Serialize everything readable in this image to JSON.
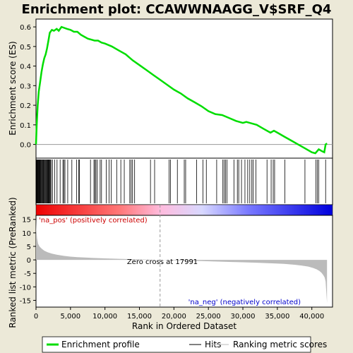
{
  "chart_data": {
    "type": "line",
    "title": "Enrichment plot: CCAWWNAAGG_V$SRF_Q4",
    "top_panel": {
      "ylabel": "Enrichment score (ES)",
      "ylim": [
        -0.07,
        0.64
      ],
      "yticks": [
        "0.0",
        "0.1",
        "0.2",
        "0.3",
        "0.4",
        "0.5",
        "0.6"
      ],
      "ytick_values": [
        0.0,
        0.1,
        0.2,
        0.3,
        0.4,
        0.5,
        0.6
      ],
      "series": [
        {
          "name": "Enrichment profile",
          "color": "#00dd00",
          "x": [
            0,
            100,
            250,
            400,
            600,
            800,
            1000,
            1200,
            1400,
            1600,
            1800,
            2000,
            2300,
            2600,
            3000,
            3300,
            3700,
            4100,
            4500,
            5000,
            5500,
            6000,
            6500,
            7000,
            7500,
            8000,
            8500,
            9000,
            9500,
            10000,
            11000,
            12000,
            13000,
            14000,
            15000,
            16000,
            17000,
            18000,
            19000,
            20000,
            21000,
            22000,
            23000,
            24000,
            25000,
            26000,
            27000,
            28000,
            29000,
            29500,
            30000,
            30500,
            31000,
            31500,
            32000,
            33000,
            34000,
            34500,
            35000,
            36000,
            37000,
            38000,
            39000,
            40000,
            40500,
            41000,
            41500,
            41800,
            42000,
            42200
          ],
          "y": [
            0.0,
            0.1,
            0.2,
            0.27,
            0.32,
            0.37,
            0.41,
            0.44,
            0.46,
            0.49,
            0.53,
            0.57,
            0.585,
            0.58,
            0.59,
            0.58,
            0.6,
            0.595,
            0.59,
            0.585,
            0.575,
            0.575,
            0.56,
            0.55,
            0.54,
            0.535,
            0.53,
            0.53,
            0.52,
            0.515,
            0.5,
            0.48,
            0.46,
            0.43,
            0.405,
            0.38,
            0.355,
            0.33,
            0.305,
            0.28,
            0.26,
            0.235,
            0.215,
            0.195,
            0.17,
            0.155,
            0.15,
            0.135,
            0.12,
            0.115,
            0.11,
            0.115,
            0.11,
            0.105,
            0.1,
            0.08,
            0.06,
            0.07,
            0.06,
            0.04,
            0.02,
            0.0,
            -0.02,
            -0.04,
            -0.045,
            -0.025,
            -0.035,
            -0.04,
            0.0,
            0.005
          ]
        }
      ]
    },
    "hits_panel": {
      "hit_positions": [
        60,
        120,
        180,
        250,
        310,
        380,
        450,
        520,
        600,
        680,
        760,
        850,
        940,
        1030,
        1120,
        1220,
        1320,
        1420,
        1520,
        1600,
        1680,
        1760,
        1840,
        1920,
        2000,
        2080,
        2200,
        2400,
        2700,
        3050,
        3500,
        3900,
        4050,
        4200,
        4600,
        5200,
        5900,
        6200,
        6300,
        7900,
        8400,
        8550,
        8700,
        8900,
        9300,
        9500,
        10200,
        10600,
        10900,
        11700,
        12300,
        12800,
        13600,
        13800,
        14000,
        14300,
        16600,
        17200,
        19300,
        19500,
        20500,
        21500,
        21700,
        23300,
        24200,
        24700,
        26200,
        27100,
        27300,
        27500,
        27700,
        28700,
        29200,
        29400,
        29800,
        30300,
        30700,
        31000,
        31300,
        31500,
        31900,
        33500,
        34100,
        34400,
        34600,
        36100,
        39000,
        40600,
        40800,
        41000,
        42000
      ]
    },
    "gradient_bar": {
      "colors": [
        "#ee0000",
        "#ff7777",
        "#ffbbdd",
        "#d8d8ff",
        "#7777ff",
        "#0000dd"
      ]
    },
    "bottom_panel": {
      "ylabel": "Ranked list metric (PreRanked)",
      "ylim": [
        -17.5,
        16.5
      ],
      "yticks": [
        "15",
        "10",
        "5",
        "0",
        "-5",
        "-10",
        "-15"
      ],
      "ytick_values": [
        15,
        10,
        5,
        0,
        -5,
        -10,
        -15
      ],
      "x": [
        0,
        50,
        150,
        300,
        500,
        800,
        1200,
        1700,
        2300,
        3000,
        4000,
        5000,
        6000,
        8000,
        10000,
        12000,
        14000,
        16000,
        17991,
        20000,
        22000,
        24000,
        26000,
        28000,
        30000,
        32000,
        34000,
        36000,
        37500,
        38500,
        39500,
        40200,
        40700,
        41100,
        41400,
        41650,
        41850,
        42000,
        42100,
        42200
      ],
      "y": [
        15,
        11,
        8,
        6,
        5,
        4.2,
        3.4,
        2.8,
        2.3,
        1.9,
        1.5,
        1.2,
        1.0,
        0.75,
        0.55,
        0.4,
        0.25,
        0.12,
        0.0,
        -0.15,
        -0.3,
        -0.45,
        -0.6,
        -0.75,
        -0.9,
        -1.05,
        -1.25,
        -1.5,
        -1.8,
        -2.1,
        -2.5,
        -3.0,
        -3.5,
        -4.1,
        -4.8,
        -5.6,
        -6.5,
        -8,
        -12,
        -16
      ],
      "annotations": {
        "pos_label": "'na_pos' (positively correlated)",
        "neg_label": "'na_neg' (negatively correlated)",
        "zero_cross": "Zero cross at 17991",
        "zero_cross_x": 17991
      }
    },
    "xlabel": "Rank in Ordered Dataset",
    "xlim": [
      0,
      43000
    ],
    "xticks": [
      "0",
      "5,000",
      "10,000",
      "15,000",
      "20,000",
      "25,000",
      "30,000",
      "35,000",
      "40,000"
    ],
    "xtick_values": [
      0,
      5000,
      10000,
      15000,
      20000,
      25000,
      30000,
      35000,
      40000
    ],
    "legend": {
      "placement": "bottom",
      "entries": [
        {
          "label": "Enrichment profile",
          "color": "#00dd00",
          "kind": "thick-line"
        },
        {
          "label": "Hits",
          "color": "#000000",
          "kind": "thin-line"
        },
        {
          "label": "Ranking metric scores",
          "color": "#bbbbbb",
          "kind": "thin-line"
        }
      ]
    }
  }
}
